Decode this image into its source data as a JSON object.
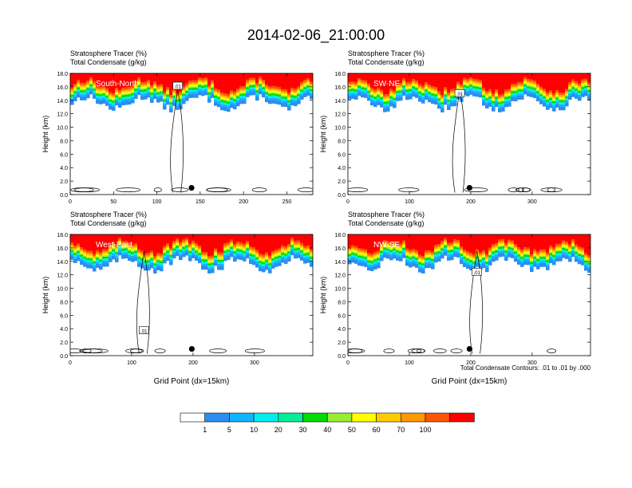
{
  "figure": {
    "title": "2014-02-06_21:00:00",
    "footnote": "Total Condensate Contours: .01 to .01 by .000"
  },
  "colorbar": {
    "labels": [
      "1",
      "5",
      "10",
      "20",
      "30",
      "40",
      "50",
      "60",
      "70",
      "100"
    ],
    "colors": [
      "#ffffff",
      "#2b8ef0",
      "#11b4ff",
      "#00eeee",
      "#00ee99",
      "#00dd00",
      "#99ee33",
      "#ffff00",
      "#ffcc00",
      "#ff9900",
      "#ff5500",
      "#ff0000"
    ]
  },
  "chart_data": [
    {
      "type": "heatmap",
      "panel_label": "South-North",
      "left_title_1": "Stratosphere Tracer   (%)",
      "left_title_2": "Total Condensate   (g/kg)",
      "xlabel": "",
      "ylabel": "Height (km)",
      "xlim": [
        0,
        280
      ],
      "ylim": [
        0,
        18
      ],
      "xticks": [
        0,
        50,
        100,
        150,
        200,
        250
      ],
      "yticks": [
        0,
        2,
        4,
        6,
        8,
        10,
        12,
        14,
        16,
        18
      ],
      "contour_label": ".01",
      "contour_label_at": [
        124,
        16.1
      ],
      "marker": [
        140,
        1.0
      ]
    },
    {
      "type": "heatmap",
      "panel_label": "SW-NE",
      "left_title_1": "Stratosphere Tracer   (%)",
      "left_title_2": "Total Condensate   (g/kg)",
      "xlabel": "",
      "ylabel": "Height (km)",
      "xlim": [
        0,
        395
      ],
      "ylim": [
        0,
        18
      ],
      "xticks": [
        0,
        100,
        200,
        300
      ],
      "yticks": [
        0,
        2,
        4,
        6,
        8,
        10,
        12,
        14,
        16,
        18
      ],
      "contour_label": ".01",
      "contour_label_at": [
        182,
        15.0
      ],
      "marker": [
        198,
        1.0
      ]
    },
    {
      "type": "heatmap",
      "panel_label": "West-East",
      "left_title_1": "Stratosphere Tracer   (%)",
      "left_title_2": "Total Condensate   (g/kg)",
      "xlabel": "Grid Point (dx=15km)",
      "ylabel": "Height (km)",
      "xlim": [
        0,
        395
      ],
      "ylim": [
        0,
        18
      ],
      "xticks": [
        0,
        100,
        200,
        300
      ],
      "yticks": [
        0,
        2,
        4,
        6,
        8,
        10,
        12,
        14,
        16,
        18
      ],
      "contour_label": ".01",
      "contour_label_at": [
        120,
        3.7
      ],
      "marker": [
        198,
        1.0
      ]
    },
    {
      "type": "heatmap",
      "panel_label": "NW-SE",
      "left_title_1": "Stratosphere Tracer   (%)",
      "left_title_2": "Total Condensate   (g/kg)",
      "xlabel": "Grid Point (dx=15km)",
      "ylabel": "Height (km)",
      "xlim": [
        0,
        395
      ],
      "ylim": [
        0,
        18
      ],
      "xticks": [
        0,
        100,
        200,
        300
      ],
      "yticks": [
        0,
        2,
        4,
        6,
        8,
        10,
        12,
        14,
        16,
        18
      ],
      "contour_label": ".01",
      "contour_label_at": [
        210,
        12.4
      ],
      "marker": [
        198,
        1.0
      ]
    }
  ]
}
